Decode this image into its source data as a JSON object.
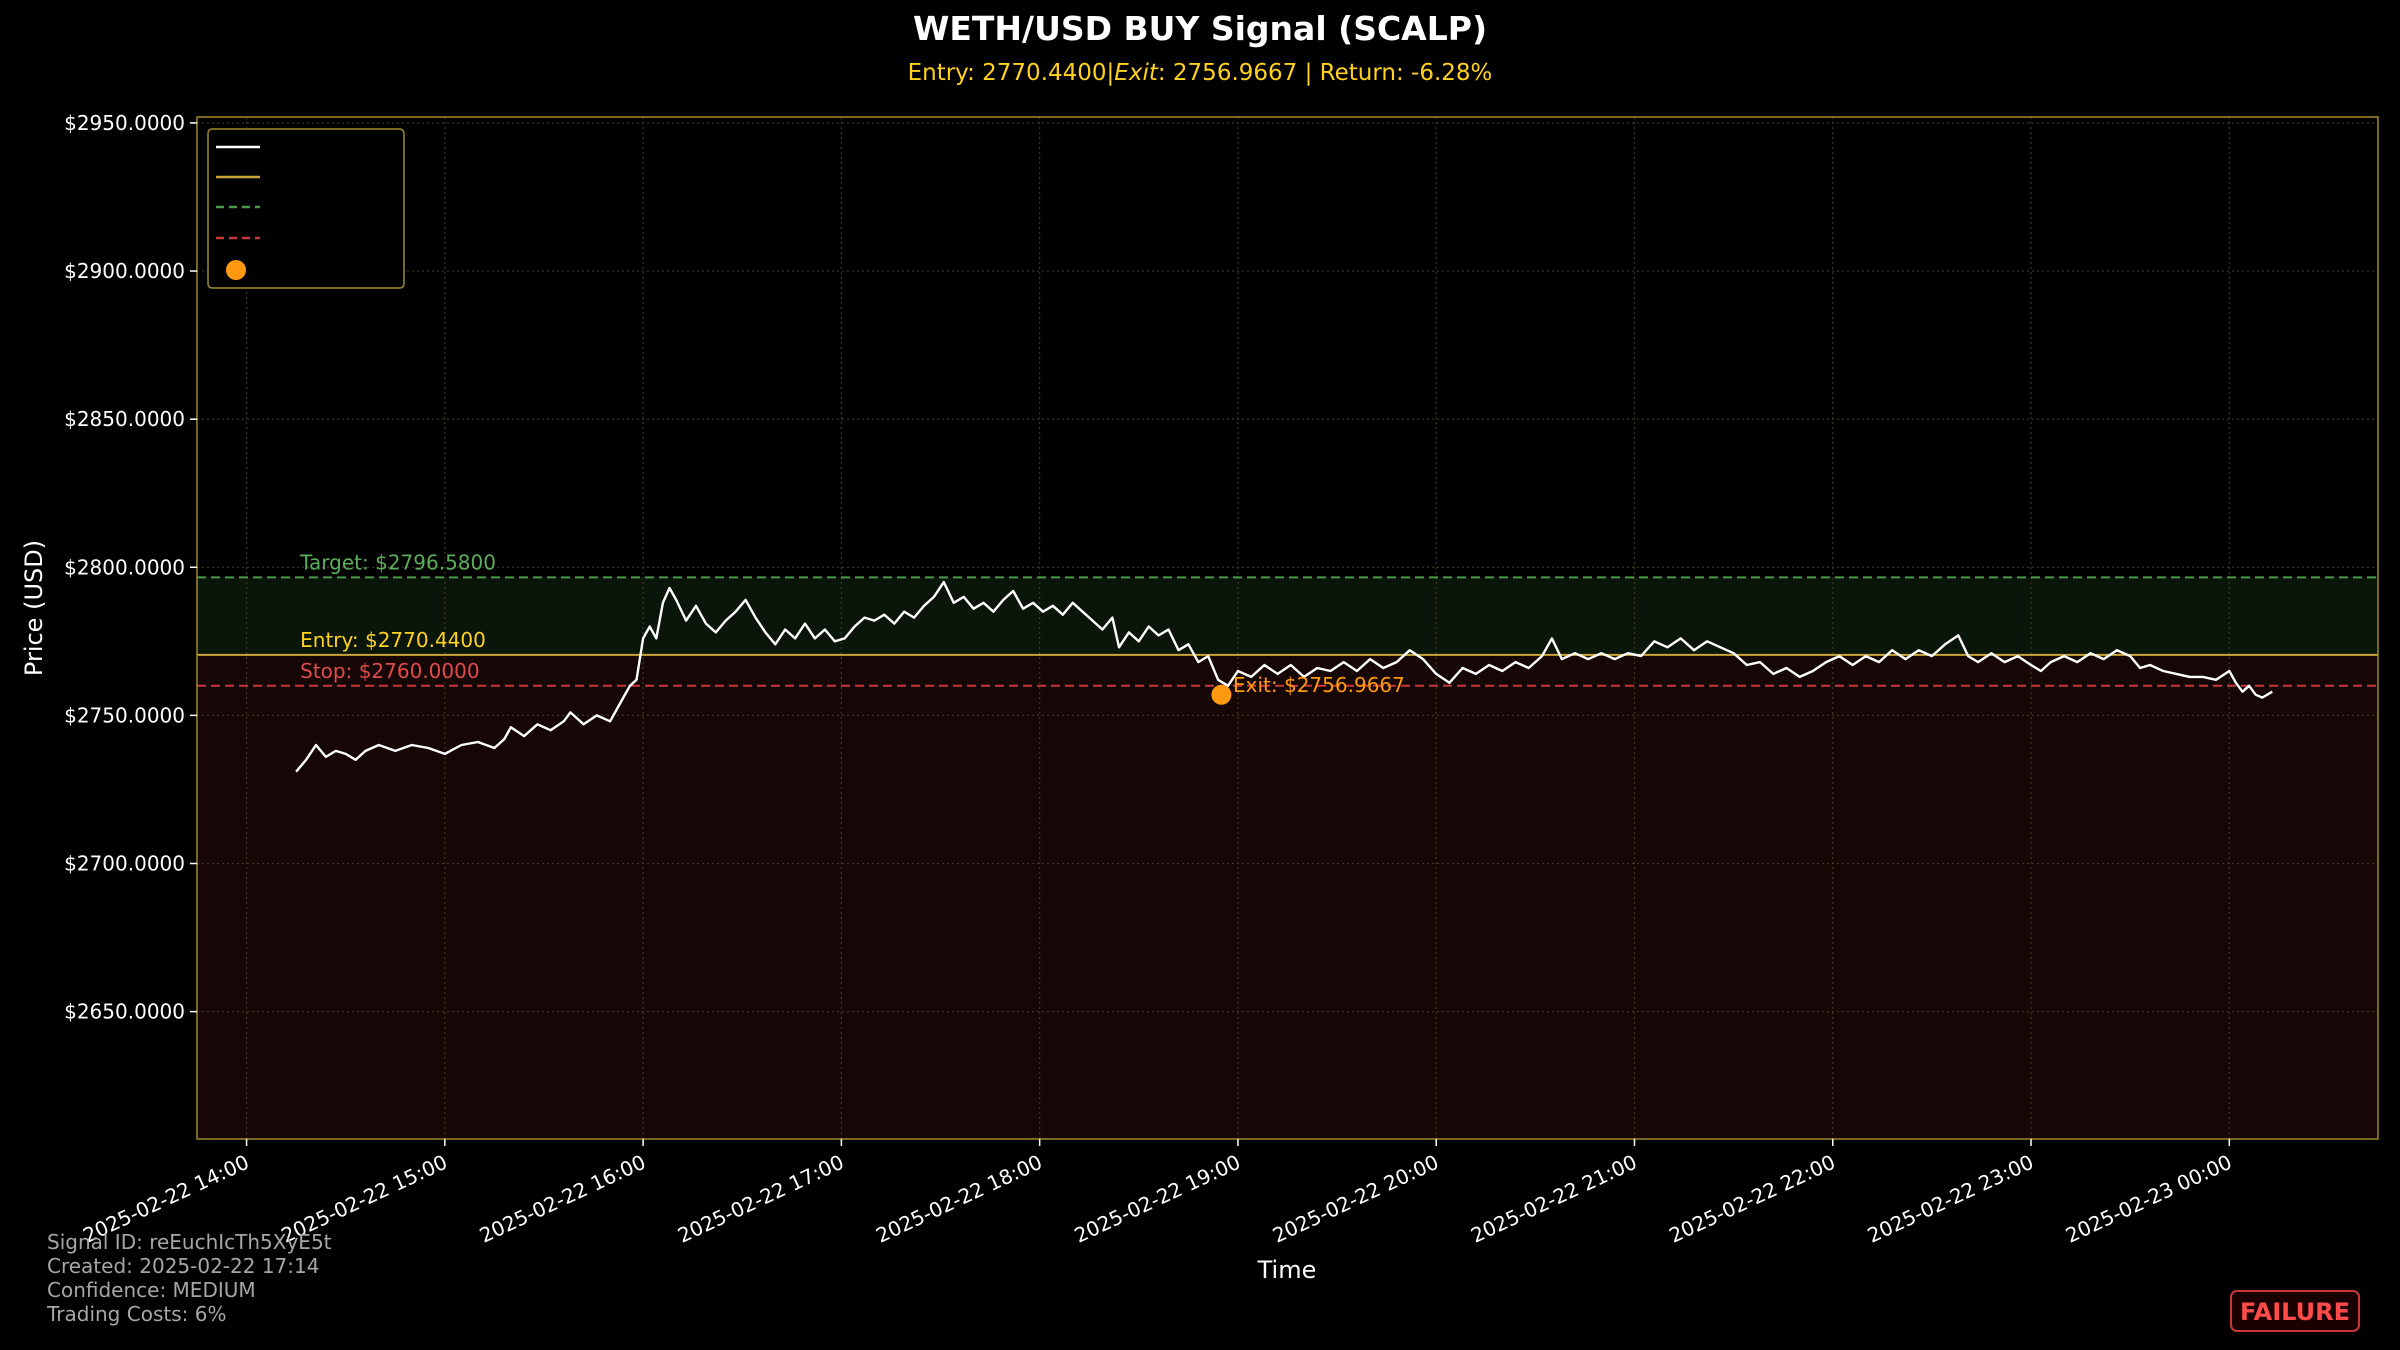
{
  "chart_data": {
    "type": "line",
    "title": "WETH/USD BUY Signal (SCALP)",
    "subtitle": "Entry: 2770.4400|$Exit: 2756.9667$ | Return: -6.28%",
    "subtitle_parts": {
      "entry": "Entry: 2770.4400|",
      "exit_label": "Exit",
      "exit_value": ": 2756.9667",
      "return": " | Return: -6.28%"
    },
    "xlabel": "Time",
    "ylabel": "Price (USD)",
    "x_range": [
      "2025-02-22 13:45",
      "2025-02-23 00:45"
    ],
    "ylim": [
      2607,
      2952
    ],
    "y_ticks": [
      {
        "value": 2650,
        "label": "$2650.0000"
      },
      {
        "value": 2700,
        "label": "$2700.0000"
      },
      {
        "value": 2750,
        "label": "$2750.0000"
      },
      {
        "value": 2800,
        "label": "$2800.0000"
      },
      {
        "value": 2850,
        "label": "$2850.0000"
      },
      {
        "value": 2900,
        "label": "$2900.0000"
      },
      {
        "value": 2950,
        "label": "$2950.0000"
      }
    ],
    "x_ticks": [
      {
        "value": "2025-02-22 14:00",
        "label": "2025-02-22 14:00"
      },
      {
        "value": "2025-02-22 15:00",
        "label": "2025-02-22 15:00"
      },
      {
        "value": "2025-02-22 16:00",
        "label": "2025-02-22 16:00"
      },
      {
        "value": "2025-02-22 17:00",
        "label": "2025-02-22 17:00"
      },
      {
        "value": "2025-02-22 18:00",
        "label": "2025-02-22 18:00"
      },
      {
        "value": "2025-02-22 19:00",
        "label": "2025-02-22 19:00"
      },
      {
        "value": "2025-02-22 20:00",
        "label": "2025-02-22 20:00"
      },
      {
        "value": "2025-02-22 21:00",
        "label": "2025-02-22 21:00"
      },
      {
        "value": "2025-02-22 22:00",
        "label": "2025-02-22 22:00"
      },
      {
        "value": "2025-02-22 23:00",
        "label": "2025-02-22 23:00"
      },
      {
        "value": "2025-02-23 00:00",
        "label": "2025-02-23 00:00"
      }
    ],
    "grid": true,
    "legend_position": "top-left",
    "legend_entries": [
      {
        "marker": "line",
        "color": "#ffffff",
        "dash": false
      },
      {
        "marker": "line",
        "color": "#c8a53a",
        "dash": false
      },
      {
        "marker": "line",
        "color": "#4a9a4a",
        "dash": true
      },
      {
        "marker": "line",
        "color": "#c83838",
        "dash": true
      },
      {
        "marker": "dot",
        "color": "#ff9a10"
      }
    ],
    "price_series": {
      "color": "#ffffff",
      "points": [
        [
          "2025-02-22 14:15",
          2731
        ],
        [
          "2025-02-22 14:18",
          2735
        ],
        [
          "2025-02-22 14:21",
          2740
        ],
        [
          "2025-02-22 14:24",
          2736
        ],
        [
          "2025-02-22 14:27",
          2738
        ],
        [
          "2025-02-22 14:30",
          2737
        ],
        [
          "2025-02-22 14:33",
          2735
        ],
        [
          "2025-02-22 14:36",
          2738
        ],
        [
          "2025-02-22 14:40",
          2740
        ],
        [
          "2025-02-22 14:45",
          2738
        ],
        [
          "2025-02-22 14:50",
          2740
        ],
        [
          "2025-02-22 14:55",
          2739
        ],
        [
          "2025-02-22 15:00",
          2737
        ],
        [
          "2025-02-22 15:05",
          2740
        ],
        [
          "2025-02-22 15:10",
          2741
        ],
        [
          "2025-02-22 15:15",
          2739
        ],
        [
          "2025-02-22 15:18",
          2742
        ],
        [
          "2025-02-22 15:20",
          2746
        ],
        [
          "2025-02-22 15:24",
          2743
        ],
        [
          "2025-02-22 15:28",
          2747
        ],
        [
          "2025-02-22 15:32",
          2745
        ],
        [
          "2025-02-22 15:36",
          2748
        ],
        [
          "2025-02-22 15:38",
          2751
        ],
        [
          "2025-02-22 15:42",
          2747
        ],
        [
          "2025-02-22 15:46",
          2750
        ],
        [
          "2025-02-22 15:50",
          2748
        ],
        [
          "2025-02-22 15:53",
          2754
        ],
        [
          "2025-02-22 15:56",
          2760
        ],
        [
          "2025-02-22 15:58",
          2762
        ],
        [
          "2025-02-22 16:00",
          2776
        ],
        [
          "2025-02-22 16:02",
          2780
        ],
        [
          "2025-02-22 16:04",
          2776
        ],
        [
          "2025-02-22 16:06",
          2788
        ],
        [
          "2025-02-22 16:08",
          2793
        ],
        [
          "2025-02-22 16:10",
          2789
        ],
        [
          "2025-02-22 16:13",
          2782
        ],
        [
          "2025-02-22 16:16",
          2787
        ],
        [
          "2025-02-22 16:19",
          2781
        ],
        [
          "2025-02-22 16:22",
          2778
        ],
        [
          "2025-02-22 16:25",
          2782
        ],
        [
          "2025-02-22 16:28",
          2785
        ],
        [
          "2025-02-22 16:31",
          2789
        ],
        [
          "2025-02-22 16:34",
          2783
        ],
        [
          "2025-02-22 16:37",
          2778
        ],
        [
          "2025-02-22 16:40",
          2774
        ],
        [
          "2025-02-22 16:43",
          2779
        ],
        [
          "2025-02-22 16:46",
          2776
        ],
        [
          "2025-02-22 16:49",
          2781
        ],
        [
          "2025-02-22 16:52",
          2776
        ],
        [
          "2025-02-22 16:55",
          2779
        ],
        [
          "2025-02-22 16:58",
          2775
        ],
        [
          "2025-02-22 17:01",
          2776
        ],
        [
          "2025-02-22 17:04",
          2780
        ],
        [
          "2025-02-22 17:07",
          2783
        ],
        [
          "2025-02-22 17:10",
          2782
        ],
        [
          "2025-02-22 17:13",
          2784
        ],
        [
          "2025-02-22 17:16",
          2781
        ],
        [
          "2025-02-22 17:19",
          2785
        ],
        [
          "2025-02-22 17:22",
          2783
        ],
        [
          "2025-02-22 17:25",
          2787
        ],
        [
          "2025-02-22 17:28",
          2790
        ],
        [
          "2025-02-22 17:31",
          2795
        ],
        [
          "2025-02-22 17:34",
          2788
        ],
        [
          "2025-02-22 17:37",
          2790
        ],
        [
          "2025-02-22 17:40",
          2786
        ],
        [
          "2025-02-22 17:43",
          2788
        ],
        [
          "2025-02-22 17:46",
          2785
        ],
        [
          "2025-02-22 17:49",
          2789
        ],
        [
          "2025-02-22 17:52",
          2792
        ],
        [
          "2025-02-22 17:55",
          2786
        ],
        [
          "2025-02-22 17:58",
          2788
        ],
        [
          "2025-02-22 18:01",
          2785
        ],
        [
          "2025-02-22 18:04",
          2787
        ],
        [
          "2025-02-22 18:07",
          2784
        ],
        [
          "2025-02-22 18:10",
          2788
        ],
        [
          "2025-02-22 18:13",
          2785
        ],
        [
          "2025-02-22 18:16",
          2782
        ],
        [
          "2025-02-22 18:19",
          2779
        ],
        [
          "2025-02-22 18:22",
          2783
        ],
        [
          "2025-02-22 18:24",
          2773
        ],
        [
          "2025-02-22 18:27",
          2778
        ],
        [
          "2025-02-22 18:30",
          2775
        ],
        [
          "2025-02-22 18:33",
          2780
        ],
        [
          "2025-02-22 18:36",
          2777
        ],
        [
          "2025-02-22 18:39",
          2779
        ],
        [
          "2025-02-22 18:42",
          2772
        ],
        [
          "2025-02-22 18:45",
          2774
        ],
        [
          "2025-02-22 18:48",
          2768
        ],
        [
          "2025-02-22 18:51",
          2770
        ],
        [
          "2025-02-22 18:54",
          2762
        ],
        [
          "2025-02-22 18:57",
          2760
        ],
        [
          "2025-02-22 19:00",
          2765
        ],
        [
          "2025-02-22 19:04",
          2763
        ],
        [
          "2025-02-22 19:08",
          2767
        ],
        [
          "2025-02-22 19:12",
          2764
        ],
        [
          "2025-02-22 19:16",
          2767
        ],
        [
          "2025-02-22 19:20",
          2763
        ],
        [
          "2025-02-22 19:24",
          2766
        ],
        [
          "2025-02-22 19:28",
          2765
        ],
        [
          "2025-02-22 19:32",
          2768
        ],
        [
          "2025-02-22 19:36",
          2765
        ],
        [
          "2025-02-22 19:40",
          2769
        ],
        [
          "2025-02-22 19:44",
          2766
        ],
        [
          "2025-02-22 19:48",
          2768
        ],
        [
          "2025-02-22 19:52",
          2772
        ],
        [
          "2025-02-22 19:56",
          2769
        ],
        [
          "2025-02-22 20:00",
          2764
        ],
        [
          "2025-02-22 20:04",
          2761
        ],
        [
          "2025-02-22 20:08",
          2766
        ],
        [
          "2025-02-22 20:12",
          2764
        ],
        [
          "2025-02-22 20:16",
          2767
        ],
        [
          "2025-02-22 20:20",
          2765
        ],
        [
          "2025-02-22 20:24",
          2768
        ],
        [
          "2025-02-22 20:28",
          2766
        ],
        [
          "2025-02-22 20:32",
          2770
        ],
        [
          "2025-02-22 20:35",
          2776
        ],
        [
          "2025-02-22 20:38",
          2769
        ],
        [
          "2025-02-22 20:42",
          2771
        ],
        [
          "2025-02-22 20:46",
          2769
        ],
        [
          "2025-02-22 20:50",
          2771
        ],
        [
          "2025-02-22 20:54",
          2769
        ],
        [
          "2025-02-22 20:58",
          2771
        ],
        [
          "2025-02-22 21:02",
          2770
        ],
        [
          "2025-02-22 21:06",
          2775
        ],
        [
          "2025-02-22 21:10",
          2773
        ],
        [
          "2025-02-22 21:14",
          2776
        ],
        [
          "2025-02-22 21:18",
          2772
        ],
        [
          "2025-02-22 21:22",
          2775
        ],
        [
          "2025-02-22 21:26",
          2773
        ],
        [
          "2025-02-22 21:30",
          2771
        ],
        [
          "2025-02-22 21:34",
          2767
        ],
        [
          "2025-02-22 21:38",
          2768
        ],
        [
          "2025-02-22 21:42",
          2764
        ],
        [
          "2025-02-22 21:46",
          2766
        ],
        [
          "2025-02-22 21:50",
          2763
        ],
        [
          "2025-02-22 21:54",
          2765
        ],
        [
          "2025-02-22 21:58",
          2768
        ],
        [
          "2025-02-22 22:02",
          2770
        ],
        [
          "2025-02-22 22:06",
          2767
        ],
        [
          "2025-02-22 22:10",
          2770
        ],
        [
          "2025-02-22 22:14",
          2768
        ],
        [
          "2025-02-22 22:18",
          2772
        ],
        [
          "2025-02-22 22:22",
          2769
        ],
        [
          "2025-02-22 22:26",
          2772
        ],
        [
          "2025-02-22 22:30",
          2770
        ],
        [
          "2025-02-22 22:34",
          2774
        ],
        [
          "2025-02-22 22:38",
          2777
        ],
        [
          "2025-02-22 22:41",
          2770
        ],
        [
          "2025-02-22 22:44",
          2768
        ],
        [
          "2025-02-22 22:48",
          2771
        ],
        [
          "2025-02-22 22:52",
          2768
        ],
        [
          "2025-02-22 22:56",
          2770
        ],
        [
          "2025-02-22 23:00",
          2767
        ],
        [
          "2025-02-22 23:03",
          2765
        ],
        [
          "2025-02-22 23:06",
          2768
        ],
        [
          "2025-02-22 23:10",
          2770
        ],
        [
          "2025-02-22 23:14",
          2768
        ],
        [
          "2025-02-22 23:18",
          2771
        ],
        [
          "2025-02-22 23:22",
          2769
        ],
        [
          "2025-02-22 23:26",
          2772
        ],
        [
          "2025-02-22 23:30",
          2770
        ],
        [
          "2025-02-22 23:33",
          2766
        ],
        [
          "2025-02-22 23:36",
          2767
        ],
        [
          "2025-02-22 23:40",
          2765
        ],
        [
          "2025-02-22 23:44",
          2764
        ],
        [
          "2025-02-22 23:48",
          2763
        ],
        [
          "2025-02-22 23:52",
          2763
        ],
        [
          "2025-02-22 23:56",
          2762
        ],
        [
          "2025-02-23 00:00",
          2765
        ],
        [
          "2025-02-23 00:02",
          2761
        ],
        [
          "2025-02-23 00:04",
          2758
        ],
        [
          "2025-02-23 00:06",
          2760
        ],
        [
          "2025-02-23 00:08",
          2757
        ],
        [
          "2025-02-23 00:10",
          2756
        ],
        [
          "2025-02-23 00:13",
          2758
        ]
      ]
    },
    "levels": [
      {
        "id": "target",
        "value": 2796.58,
        "label": "Target: $2796.5800",
        "color": "#4a9a4a",
        "dash": true
      },
      {
        "id": "entry",
        "value": 2770.44,
        "label": "Entry: $2770.4400",
        "color": "#c8a53a",
        "dash": false
      },
      {
        "id": "stop",
        "value": 2760.0,
        "label": "Stop: $2760.0000",
        "color": "#c83838",
        "dash": true
      }
    ],
    "zones": [
      {
        "id": "profit-zone",
        "from": 2770.44,
        "to": 2796.58,
        "color": "#0a160a"
      },
      {
        "id": "loss-zone",
        "from": 2607,
        "to": 2770.44,
        "color": "#160706"
      }
    ],
    "exit_point": {
      "x": "2025-02-22 18:55",
      "y": 2756.9667,
      "label": "Exit: $2756.9667",
      "color": "#ff9a10"
    },
    "level_label_x": "2025-02-22 14:15",
    "exit_label_dx": "2025-02-22 18:57"
  },
  "footer": {
    "signal_id": "Signal ID: reEuchIcTh5XyE5t",
    "created": "Created: 2025-02-22 17:14",
    "confidence": "Confidence: MEDIUM",
    "trading_costs": "Trading Costs: 6%"
  },
  "badge": {
    "text": "FAILURE",
    "color": "#ff4a4a"
  },
  "colors": {
    "background": "#000000",
    "axis": "#a08a2a",
    "grid": "#3a3a1a",
    "subtitle": "#ffd21f"
  }
}
